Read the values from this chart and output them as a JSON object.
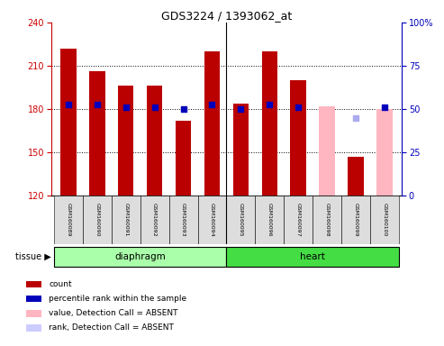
{
  "title": "GDS3224 / 1393062_at",
  "samples": [
    "GSM160089",
    "GSM160090",
    "GSM160091",
    "GSM160092",
    "GSM160093",
    "GSM160094",
    "GSM160095",
    "GSM160096",
    "GSM160097",
    "GSM160098",
    "GSM160099",
    "GSM160100"
  ],
  "count_values": [
    222,
    206,
    196,
    196,
    172,
    220,
    184,
    220,
    200,
    null,
    147,
    null
  ],
  "count_absent_values": [
    null,
    null,
    null,
    null,
    null,
    null,
    null,
    null,
    null,
    182,
    null,
    180
  ],
  "percentile_values": [
    183,
    183,
    181,
    181,
    180,
    183,
    180,
    183,
    181,
    null,
    null,
    181
  ],
  "percentile_absent_values": [
    null,
    null,
    null,
    null,
    null,
    null,
    null,
    null,
    null,
    null,
    174,
    null
  ],
  "ylim_left": [
    120,
    240
  ],
  "ylim_right": [
    0,
    100
  ],
  "yticks_left": [
    120,
    150,
    180,
    210,
    240
  ],
  "yticks_right": [
    0,
    25,
    50,
    75,
    100
  ],
  "ytick_right_labels": [
    "0",
    "25",
    "50",
    "75",
    "100%"
  ],
  "bar_color": "#BB0000",
  "bar_absent_color": "#FFB6C1",
  "dot_color": "#0000BB",
  "dot_absent_color": "#AAAAEE",
  "axis_color_left": "#CC0000",
  "axis_color_right": "#0000BB",
  "diaphragm_color": "#AAFFAA",
  "heart_color": "#44DD44",
  "tissue_groups": [
    {
      "label": "diaphragm",
      "start": 0,
      "end": 6
    },
    {
      "label": "heart",
      "start": 6,
      "end": 12
    }
  ],
  "bar_width": 0.55,
  "dot_size": 18,
  "legend_colors": [
    "#BB0000",
    "#0000BB",
    "#FFB6C1",
    "#CCCCFF"
  ],
  "legend_labels": [
    "count",
    "percentile rank within the sample",
    "value, Detection Call = ABSENT",
    "rank, Detection Call = ABSENT"
  ]
}
